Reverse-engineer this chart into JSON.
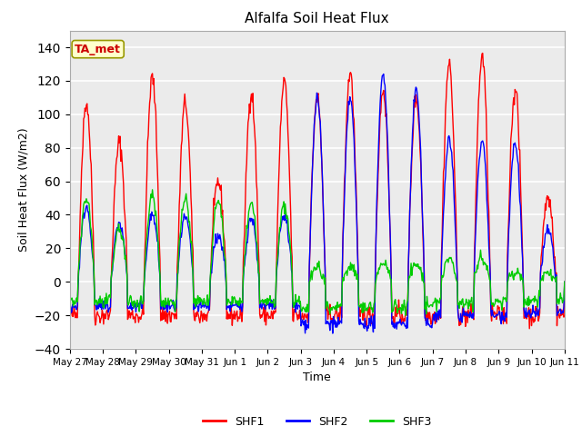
{
  "title": "Alfalfa Soil Heat Flux",
  "xlabel": "Time",
  "ylabel": "Soil Heat Flux (W/m2)",
  "ylim": [
    -40,
    150
  ],
  "yticks": [
    -40,
    -20,
    0,
    20,
    40,
    60,
    80,
    100,
    120,
    140
  ],
  "plot_bg_color": "#ebebeb",
  "fig_bg_color": "#ffffff",
  "line_colors": {
    "SHF1": "#ff0000",
    "SHF2": "#0000ff",
    "SHF3": "#00cc00"
  },
  "legend_label": "TA_met",
  "legend_bg": "#ffffcc",
  "tick_labels": [
    "May 27",
    "May 28",
    "May 29",
    "May 30",
    "May 31",
    "Jun 1",
    "Jun 2",
    "Jun 3",
    "Jun 4",
    "Jun 5",
    "Jun 6",
    "Jun 7",
    "Jun 8",
    "Jun 9",
    "Jun 10",
    "Jun 11"
  ],
  "n_days": 15
}
